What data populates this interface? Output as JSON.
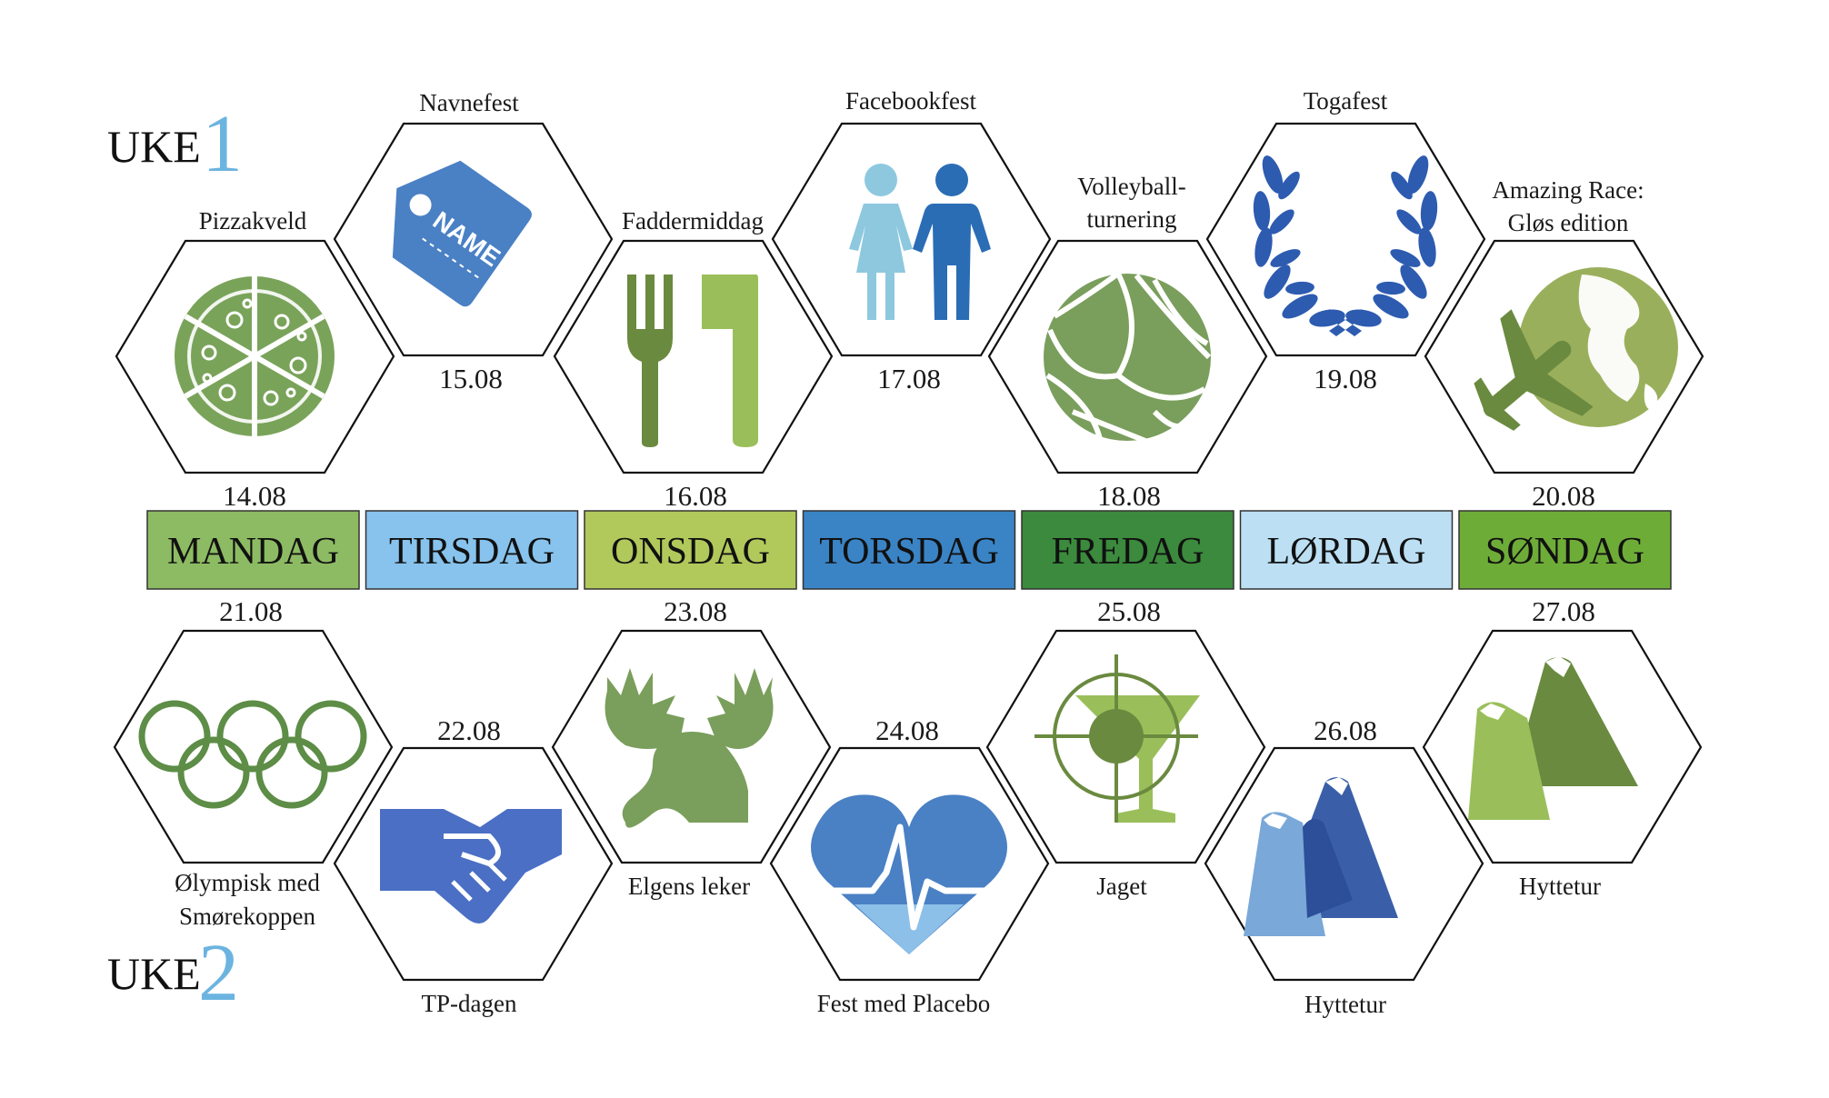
{
  "week1": {
    "word": "UKE",
    "number": "1"
  },
  "week2": {
    "word": "UKE",
    "number": "2"
  },
  "days": [
    {
      "label": "MANDAG",
      "color": "#8dbb63"
    },
    {
      "label": "TIRSDAG",
      "color": "#87c3ec"
    },
    {
      "label": "ONSDAG",
      "color": "#b1c95b"
    },
    {
      "label": "TORSDAG",
      "color": "#3a84c5"
    },
    {
      "label": "FREDAG",
      "color": "#3b8a3d"
    },
    {
      "label": "LØRDAG",
      "color": "#bcdff3"
    },
    {
      "label": "SØNDAG",
      "color": "#6eac38"
    }
  ],
  "events_week1": [
    {
      "date": "14.08",
      "name_lines": [
        "Pizzakveld"
      ],
      "icon": "pizza-icon"
    },
    {
      "date": "15.08",
      "name_lines": [
        "Navnefest"
      ],
      "icon": "name-tag-icon"
    },
    {
      "date": "16.08",
      "name_lines": [
        "Faddermiddag"
      ],
      "icon": "fork-knife-icon"
    },
    {
      "date": "17.08",
      "name_lines": [
        "Facebookfest"
      ],
      "icon": "couple-icon"
    },
    {
      "date": "18.08",
      "name_lines": [
        "Volleyball-",
        "turnering"
      ],
      "icon": "volleyball-icon"
    },
    {
      "date": "19.08",
      "name_lines": [
        "Togafest"
      ],
      "icon": "laurel-wreath-icon"
    },
    {
      "date": "20.08",
      "name_lines": [
        "Amazing Race:",
        "Gløs edition"
      ],
      "icon": "globe-plane-icon"
    }
  ],
  "events_week2": [
    {
      "date": "21.08",
      "name_lines": [
        "Ølympisk med",
        "Smørekoppen"
      ],
      "icon": "olympic-rings-icon"
    },
    {
      "date": "22.08",
      "name_lines": [
        "TP-dagen"
      ],
      "icon": "handshake-icon"
    },
    {
      "date": "23.08",
      "name_lines": [
        "Elgens leker"
      ],
      "icon": "moose-icon"
    },
    {
      "date": "24.08",
      "name_lines": [
        "Fest med Placebo"
      ],
      "icon": "heartbeat-icon"
    },
    {
      "date": "25.08",
      "name_lines": [
        "Jaget"
      ],
      "icon": "target-cocktail-icon"
    },
    {
      "date": "26.08",
      "name_lines": [
        "Hyttetur"
      ],
      "icon": "mountains-icon"
    },
    {
      "date": "27.08",
      "name_lines": [
        "Hyttetur"
      ],
      "icon": "mountains-icon"
    }
  ],
  "colors": {
    "green_light": "#9abf5a",
    "green_mid": "#7aa35a",
    "green_dark": "#5d8d46",
    "blue_mid": "#4a80c4",
    "blue_dark": "#1f5bb0",
    "blue_light": "#8dc8df",
    "uke_number": "#6cb4e0"
  }
}
